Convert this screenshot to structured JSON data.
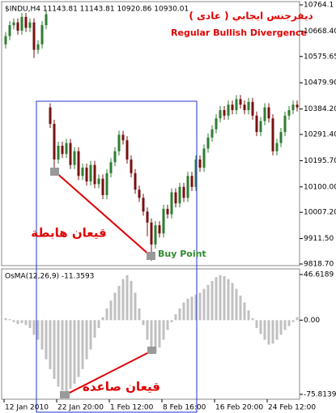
{
  "chart_data": [
    {
      "type": "candlestick",
      "title": "$INDU,H4  11143.81 11143.81 10920.86 10930.01",
      "annotations": [
        "ديفرجنس ايجابي ( عادى )",
        "Regular Bullish Divergence",
        "قيعان هابطة",
        "Buy Point"
      ],
      "up_color": "#2e7d32",
      "down_color": "#7a1010",
      "ylim": [
        9812.8,
        10775.9
      ],
      "yticks": [
        10764.1,
        {
          "value": 10668.4,
          "label": "10668.40"
        },
        10575.65,
        {
          "value": 10479.9,
          "label": "10479.90"
        },
        {
          "value": 10384.2,
          "label": "10384.20"
        },
        {
          "value": 10291.4,
          "label": "10291.40"
        },
        {
          "value": 10195.7,
          "label": "10195.70"
        },
        {
          "value": 10100,
          "label": "10100.00"
        },
        {
          "value": 10007.2,
          "label": "10007.20"
        },
        {
          "value": 9911.5,
          "label": "9911.50"
        },
        {
          "value": 9818.7,
          "label": "9818.70"
        }
      ],
      "open": [
        10620,
        10650,
        10690,
        10700,
        10670,
        10720,
        10680,
        10700,
        10600,
        10620,
        10690,
        10390,
        10330,
        10200,
        10250,
        10220,
        10260,
        10180,
        10230,
        10140,
        10170,
        10120,
        10180,
        10110,
        10130,
        10070,
        10150,
        10190,
        10230,
        10290,
        10270,
        10200,
        10150,
        10090,
        10060,
        10010,
        9970,
        9890,
        9960,
        9930,
        10020,
        10000,
        10080,
        10040,
        10100,
        10060,
        10140,
        10100,
        10200,
        10170,
        10240,
        10280,
        10310,
        10350,
        10380,
        10360,
        10400,
        10380,
        10420,
        10400,
        10380,
        10410,
        10360,
        10300,
        10340,
        10390,
        10350,
        10230,
        10260,
        10300,
        10360,
        10380,
        10400
      ],
      "high": [
        10665,
        10705,
        10715,
        10715,
        10735,
        10735,
        10715,
        10715,
        10635,
        10705,
        10745,
        10405,
        10345,
        10265,
        10265,
        10275,
        10275,
        10245,
        10245,
        10185,
        10185,
        10195,
        10195,
        10145,
        10145,
        10165,
        10205,
        10245,
        10305,
        10305,
        10285,
        10215,
        10165,
        10105,
        10075,
        10025,
        9985,
        9975,
        9975,
        10035,
        10035,
        10095,
        10095,
        10115,
        10115,
        10155,
        10155,
        10215,
        10215,
        10255,
        10295,
        10325,
        10365,
        10395,
        10395,
        10415,
        10415,
        10435,
        10435,
        10415,
        10425,
        10425,
        10375,
        10355,
        10405,
        10405,
        10365,
        10275,
        10315,
        10375,
        10395,
        10415,
        10415
      ],
      "low": [
        10605,
        10635,
        10675,
        10655,
        10655,
        10665,
        10665,
        10570,
        10585,
        10605,
        10675,
        10315,
        10160,
        10185,
        10205,
        10205,
        10165,
        10165,
        10125,
        10125,
        10105,
        10105,
        10095,
        10095,
        10055,
        10055,
        10135,
        10175,
        10215,
        10255,
        10185,
        10135,
        10075,
        10045,
        9995,
        9920,
        9830,
        9875,
        9915,
        9915,
        9985,
        9985,
        10025,
        10025,
        10045,
        10045,
        10085,
        10085,
        10155,
        10155,
        10225,
        10265,
        10295,
        10335,
        10345,
        10345,
        10365,
        10365,
        10385,
        10365,
        10365,
        10345,
        10285,
        10285,
        10325,
        10335,
        10215,
        10215,
        10245,
        10285,
        10345,
        10365,
        10375
      ],
      "close": [
        10650,
        10690,
        10700,
        10670,
        10720,
        10680,
        10700,
        10600,
        10620,
        10690,
        10730,
        10330,
        10200,
        10250,
        10220,
        10260,
        10180,
        10230,
        10140,
        10170,
        10120,
        10180,
        10110,
        10130,
        10070,
        10150,
        10190,
        10230,
        10290,
        10270,
        10200,
        10150,
        10090,
        10060,
        10010,
        9970,
        9890,
        9960,
        9930,
        10020,
        10000,
        10080,
        10040,
        10100,
        10060,
        10140,
        10100,
        10200,
        10170,
        10240,
        10280,
        10310,
        10350,
        10380,
        10360,
        10400,
        10380,
        10420,
        10400,
        10380,
        10410,
        10360,
        10300,
        10340,
        10390,
        10350,
        10230,
        10260,
        10300,
        10360,
        10380,
        10400,
        10390
      ]
    },
    {
      "type": "bar",
      "title": "OsMA(12,26,9) -11.3593",
      "annotations": [
        "قيعان صاعدة"
      ],
      "color": "#c0c0c0",
      "categories": [
        "12 Jan 2010",
        null,
        null,
        null,
        null,
        null,
        null,
        null,
        null,
        null,
        null,
        null,
        null,
        "22 Jan 20:00",
        null,
        null,
        null,
        null,
        null,
        null,
        null,
        null,
        null,
        null,
        null,
        null,
        "1 Feb 12:00",
        null,
        null,
        null,
        null,
        null,
        null,
        null,
        null,
        null,
        null,
        null,
        null,
        "8 Feb 16:00",
        null,
        null,
        null,
        null,
        null,
        null,
        null,
        null,
        null,
        null,
        null,
        null,
        "16 Feb 20:00",
        null,
        null,
        null,
        null,
        null,
        null,
        null,
        null,
        null,
        null,
        null,
        null,
        "24 Feb 12:00",
        null,
        null,
        null,
        null,
        null,
        null,
        null
      ],
      "values": [
        2,
        1,
        -2,
        -4,
        -3,
        -5,
        -8,
        -15,
        -20,
        -30,
        -40,
        -50,
        -60,
        -68,
        -72,
        -75,
        -70,
        -65,
        -58,
        -50,
        -40,
        -30,
        -18,
        -8,
        3,
        12,
        20,
        28,
        35,
        42,
        46,
        40,
        28,
        12,
        -5,
        -20,
        -30,
        -33,
        -28,
        -20,
        -10,
        -2,
        6,
        12,
        18,
        22,
        24,
        26,
        28,
        32,
        36,
        40,
        44,
        46,
        45,
        42,
        38,
        32,
        25,
        18,
        10,
        2,
        -8,
        -14,
        -20,
        -25,
        -24,
        -20,
        -15,
        -10,
        -6,
        -2,
        3
      ],
      "ylim": [
        -80.8,
        52.4
      ],
      "yticks": [
        46.6189,
        {
          "value": 0,
          "label": "0.00"
        },
        -75.8139
      ]
    }
  ]
}
